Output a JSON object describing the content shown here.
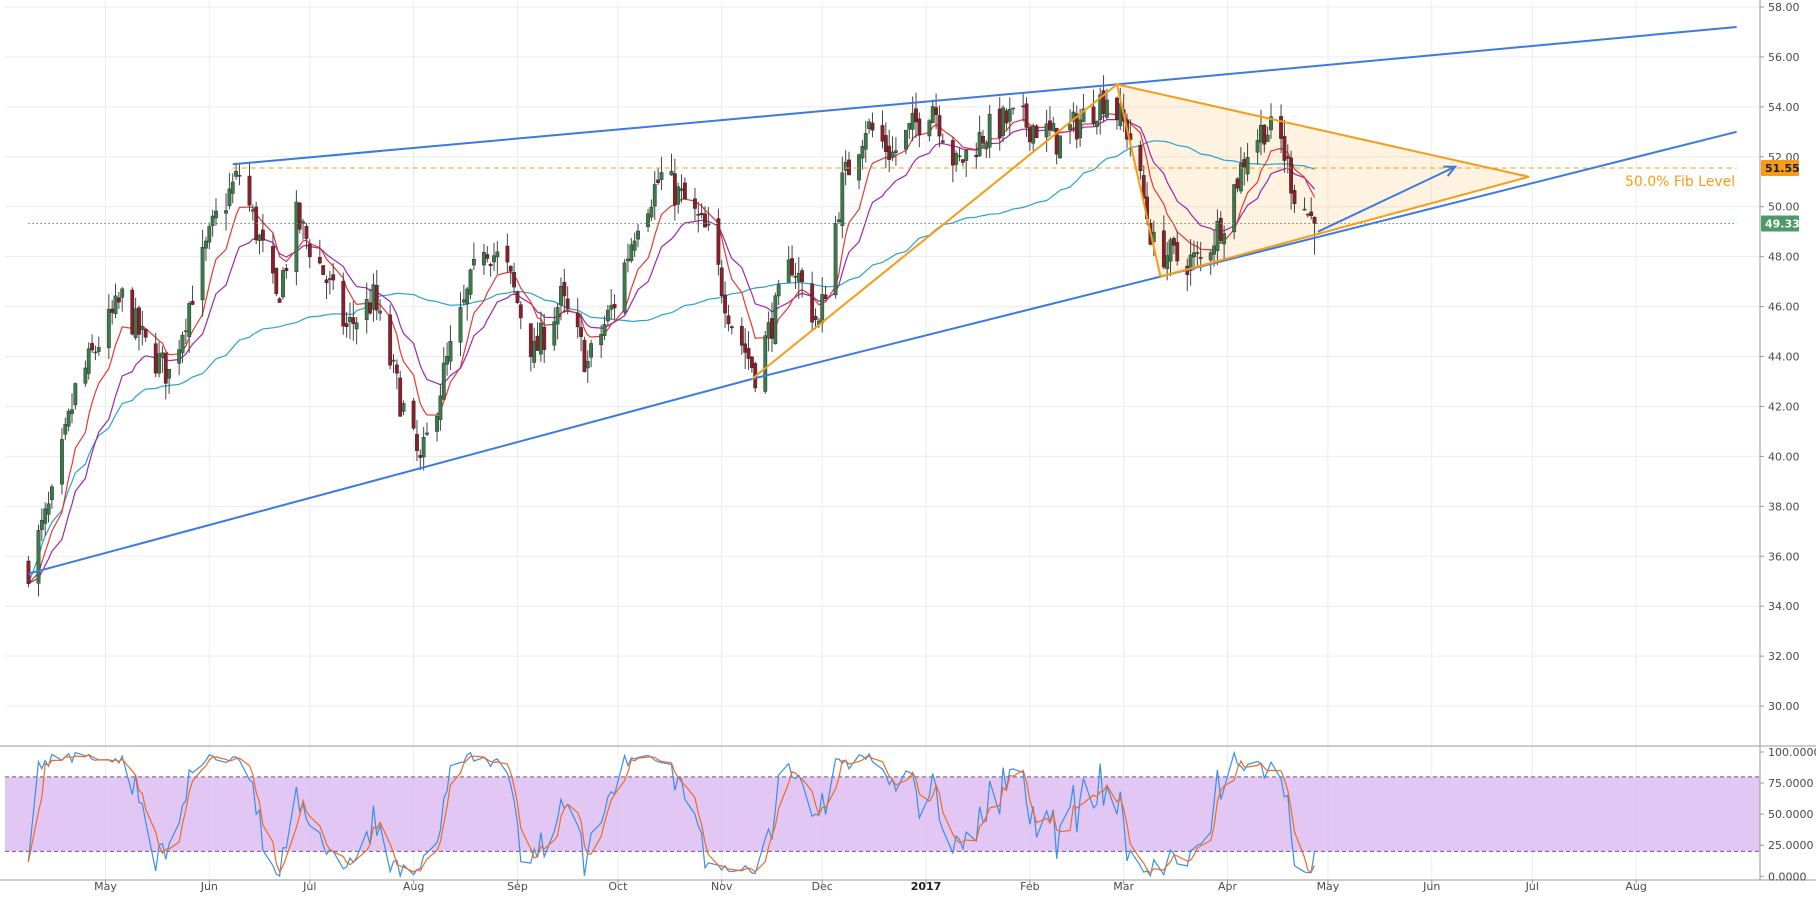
{
  "colors": {
    "up": "#3d7a49",
    "down": "#8a1f2c",
    "wick": "#444444",
    "ema_fast": "#e53935",
    "ema_mid": "#9c27b0",
    "ma_slow": "#29a3c9",
    "channel": "#3d7ae0",
    "pennant": "#f59c1a",
    "fib": "#f59c1a",
    "current": "#4c9a6a",
    "stoch_k": "#3a8fe6",
    "stoch_d": "#f06a22",
    "stoch_band": "#d8b4f0",
    "grid": "#ececec"
  },
  "chart_data": [
    {
      "type": "candlestick",
      "title": "",
      "xlabel": "",
      "ylabel": "",
      "x_tick_labels": [
        "May",
        "Jun",
        "Jul",
        "Aug",
        "Sep",
        "Oct",
        "Nov",
        "Dec",
        "2017",
        "Feb",
        "Mar",
        "Apr",
        "May",
        "Jun",
        "Jul",
        "Aug"
      ],
      "y_tick_labels": [
        "30.00",
        "32.00",
        "34.00",
        "36.00",
        "38.00",
        "40.00",
        "42.00",
        "44.00",
        "46.00",
        "48.00",
        "50.00",
        "52.00",
        "54.00",
        "56.00",
        "58.00"
      ],
      "ylim": [
        28.4,
        58.2
      ],
      "grid": true,
      "anchors": [
        [
          "2016-04-08",
          35.6
        ],
        [
          "2016-04-15",
          38.2
        ],
        [
          "2016-04-22",
          42.6
        ],
        [
          "2016-04-29",
          44.6
        ],
        [
          "2016-05-06",
          46.3
        ],
        [
          "2016-05-13",
          44.4
        ],
        [
          "2016-05-20",
          43.3
        ],
        [
          "2016-05-27",
          46.6
        ],
        [
          "2016-06-03",
          49.5
        ],
        [
          "2016-06-10",
          51.3
        ],
        [
          "2016-06-17",
          48.2
        ],
        [
          "2016-06-21",
          46.2
        ],
        [
          "2016-06-27",
          49.5
        ],
        [
          "2016-07-05",
          47.4
        ],
        [
          "2016-07-12",
          45.1
        ],
        [
          "2016-07-20",
          46.3
        ],
        [
          "2016-07-28",
          42.3
        ],
        [
          "2016-08-03",
          39.6
        ],
        [
          "2016-08-10",
          43.3
        ],
        [
          "2016-08-17",
          46.4
        ],
        [
          "2016-08-22",
          48.6
        ],
        [
          "2016-08-29",
          47.4
        ],
        [
          "2016-09-06",
          44.1
        ],
        [
          "2016-09-14",
          46.3
        ],
        [
          "2016-09-22",
          43.7
        ],
        [
          "2016-09-30",
          46.2
        ],
        [
          "2016-10-07",
          49.6
        ],
        [
          "2016-10-14",
          51.2
        ],
        [
          "2016-10-21",
          50.2
        ],
        [
          "2016-10-28",
          48.8
        ],
        [
          "2016-11-04",
          45.4
        ],
        [
          "2016-11-11",
          43.4
        ],
        [
          "2016-11-16",
          45.4
        ],
        [
          "2016-11-22",
          47.8
        ],
        [
          "2016-11-30",
          45.2
        ],
        [
          "2016-12-07",
          50.9
        ],
        [
          "2016-12-14",
          53.3
        ],
        [
          "2016-12-22",
          52.1
        ],
        [
          "2017-01-03",
          54.2
        ],
        [
          "2017-01-10",
          51.6
        ],
        [
          "2017-01-18",
          52.9
        ],
        [
          "2017-01-26",
          53.5
        ],
        [
          "2017-02-03",
          53.2
        ],
        [
          "2017-02-10",
          52.6
        ],
        [
          "2017-02-17",
          53.6
        ],
        [
          "2017-02-24",
          54.5
        ],
        [
          "2017-03-03",
          52.8
        ],
        [
          "2017-03-10",
          48.4
        ],
        [
          "2017-03-17",
          47.9
        ],
        [
          "2017-03-24",
          47.8
        ],
        [
          "2017-03-31",
          49.6
        ],
        [
          "2017-04-07",
          52.3
        ],
        [
          "2017-04-12",
          53.2
        ],
        [
          "2017-04-17",
          52.6
        ],
        [
          "2017-04-21",
          50.6
        ],
        [
          "2017-04-27",
          49.33
        ]
      ],
      "price_tags": [
        {
          "name": "fib",
          "value": 51.55,
          "label": "51.55"
        },
        {
          "name": "current",
          "value": 49.33,
          "label": "49.33"
        }
      ],
      "annotations": [
        {
          "name": "fib-label",
          "text": "50.0% Fib Level",
          "value": 51.55
        }
      ],
      "overlays": {
        "channel_upper": [
          [
            "2016-06-08",
            51.7
          ],
          [
            "2017-02-27",
            54.9
          ],
          [
            "2017-08-31",
            57.2
          ]
        ],
        "channel_lower": [
          [
            "2016-04-08",
            35.3
          ],
          [
            "2016-11-10",
            43.1
          ],
          [
            "2017-03-12",
            47.2
          ],
          [
            "2017-08-31",
            53.0
          ]
        ],
        "fib_dashed": [
          [
            "2016-06-08",
            51.55
          ],
          [
            "2017-08-31",
            51.55
          ]
        ],
        "current_dotted": [
          [
            "2016-04-08",
            49.33
          ],
          [
            "2017-08-31",
            49.33
          ]
        ],
        "pennant_top": [
          [
            "2017-02-27",
            54.9
          ],
          [
            "2017-06-30",
            51.2
          ]
        ],
        "pennant_bottom": [
          [
            "2017-03-12",
            47.2
          ],
          [
            "2017-06-30",
            51.2
          ]
        ],
        "pennant_left": [
          [
            "2017-02-27",
            54.9
          ],
          [
            "2017-03-12",
            47.2
          ]
        ],
        "orange_support": [
          [
            "2016-11-10",
            43.1
          ],
          [
            "2017-02-27",
            54.9
          ]
        ],
        "forecast_arrow": [
          [
            "2017-04-28",
            49.0
          ],
          [
            "2017-06-08",
            51.6
          ]
        ]
      }
    },
    {
      "type": "line",
      "title": "",
      "name": "oscillator",
      "ylim": [
        -3,
        104
      ],
      "y_tick_labels": [
        "0.0000",
        "25.0000",
        "50.0000",
        "75.0000",
        "100.0000"
      ],
      "band": [
        20,
        80
      ],
      "series": [
        {
          "key": "k",
          "color_key": "stoch_k"
        },
        {
          "key": "d",
          "color_key": "stoch_d"
        }
      ]
    }
  ]
}
